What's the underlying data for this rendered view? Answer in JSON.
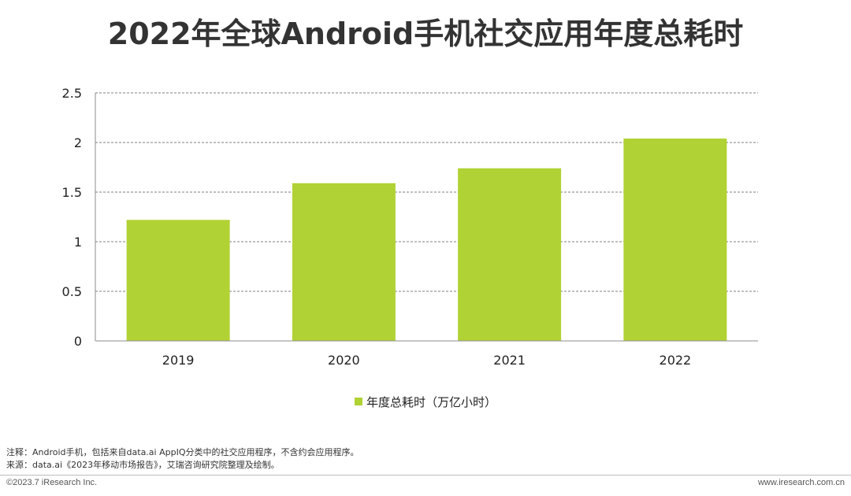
{
  "title": "2022年全球Android手机社交应用年度总耗时",
  "chart_data": {
    "type": "bar",
    "title": "2022年全球Android手机社交应用年度总耗时",
    "categories": [
      "2019",
      "2020",
      "2021",
      "2022"
    ],
    "series": [
      {
        "name": "年度总耗时（万亿小时）",
        "values": [
          1.22,
          1.59,
          1.74,
          2.04
        ],
        "color": "#b1d234"
      }
    ],
    "ylim": [
      0,
      2.5
    ],
    "yticks": [
      0,
      0.5,
      1,
      1.5,
      2,
      2.5
    ],
    "ytick_labels": [
      "0",
      "0.5",
      "1",
      "1.5",
      "2",
      "2.5"
    ],
    "grid": true,
    "legend": "bottom-center",
    "xlabel": "",
    "ylabel": ""
  },
  "notes": {
    "note": "注释：Android手机，包括来自data.ai AppIQ分类中的社交应用程序，不含约会应用程序。",
    "source": "来源：data.ai《2023年移动市场报告》，艾瑞咨询研究院整理及绘制。"
  },
  "footer": {
    "copyright": "©2023.7 iResearch Inc.",
    "website": "www.iresearch.com.cn"
  }
}
